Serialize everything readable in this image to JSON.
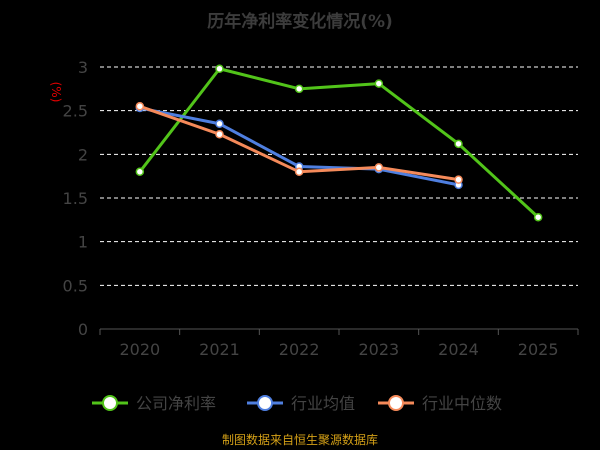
{
  "title": "历年净利率变化情况(%)",
  "unit_label": "(%)",
  "source_text": "制图数据来自恒生聚源数据库",
  "chart_data": {
    "type": "line",
    "title": "历年净利率变化情况(%)",
    "ylabel": "(%)",
    "categories": [
      "2020",
      "2021",
      "2022",
      "2023",
      "2024",
      "2025"
    ],
    "ylim": [
      0,
      3
    ],
    "yticks": [
      "0",
      "0.5",
      "1",
      "1.5",
      "2",
      "2.5",
      "3"
    ],
    "grid": true,
    "legend_position": "bottom",
    "series": [
      {
        "name": "公司净利率",
        "color": "#52c41a",
        "values": [
          1.8,
          2.98,
          2.75,
          2.81,
          2.12,
          1.28
        ]
      },
      {
        "name": "行业均值",
        "color": "#4f7fe0",
        "values": [
          2.53,
          2.35,
          1.86,
          1.83,
          1.65,
          null
        ]
      },
      {
        "name": "行业中位数",
        "color": "#f58a5a",
        "values": [
          2.55,
          2.23,
          1.8,
          1.85,
          1.71,
          null
        ]
      }
    ]
  }
}
